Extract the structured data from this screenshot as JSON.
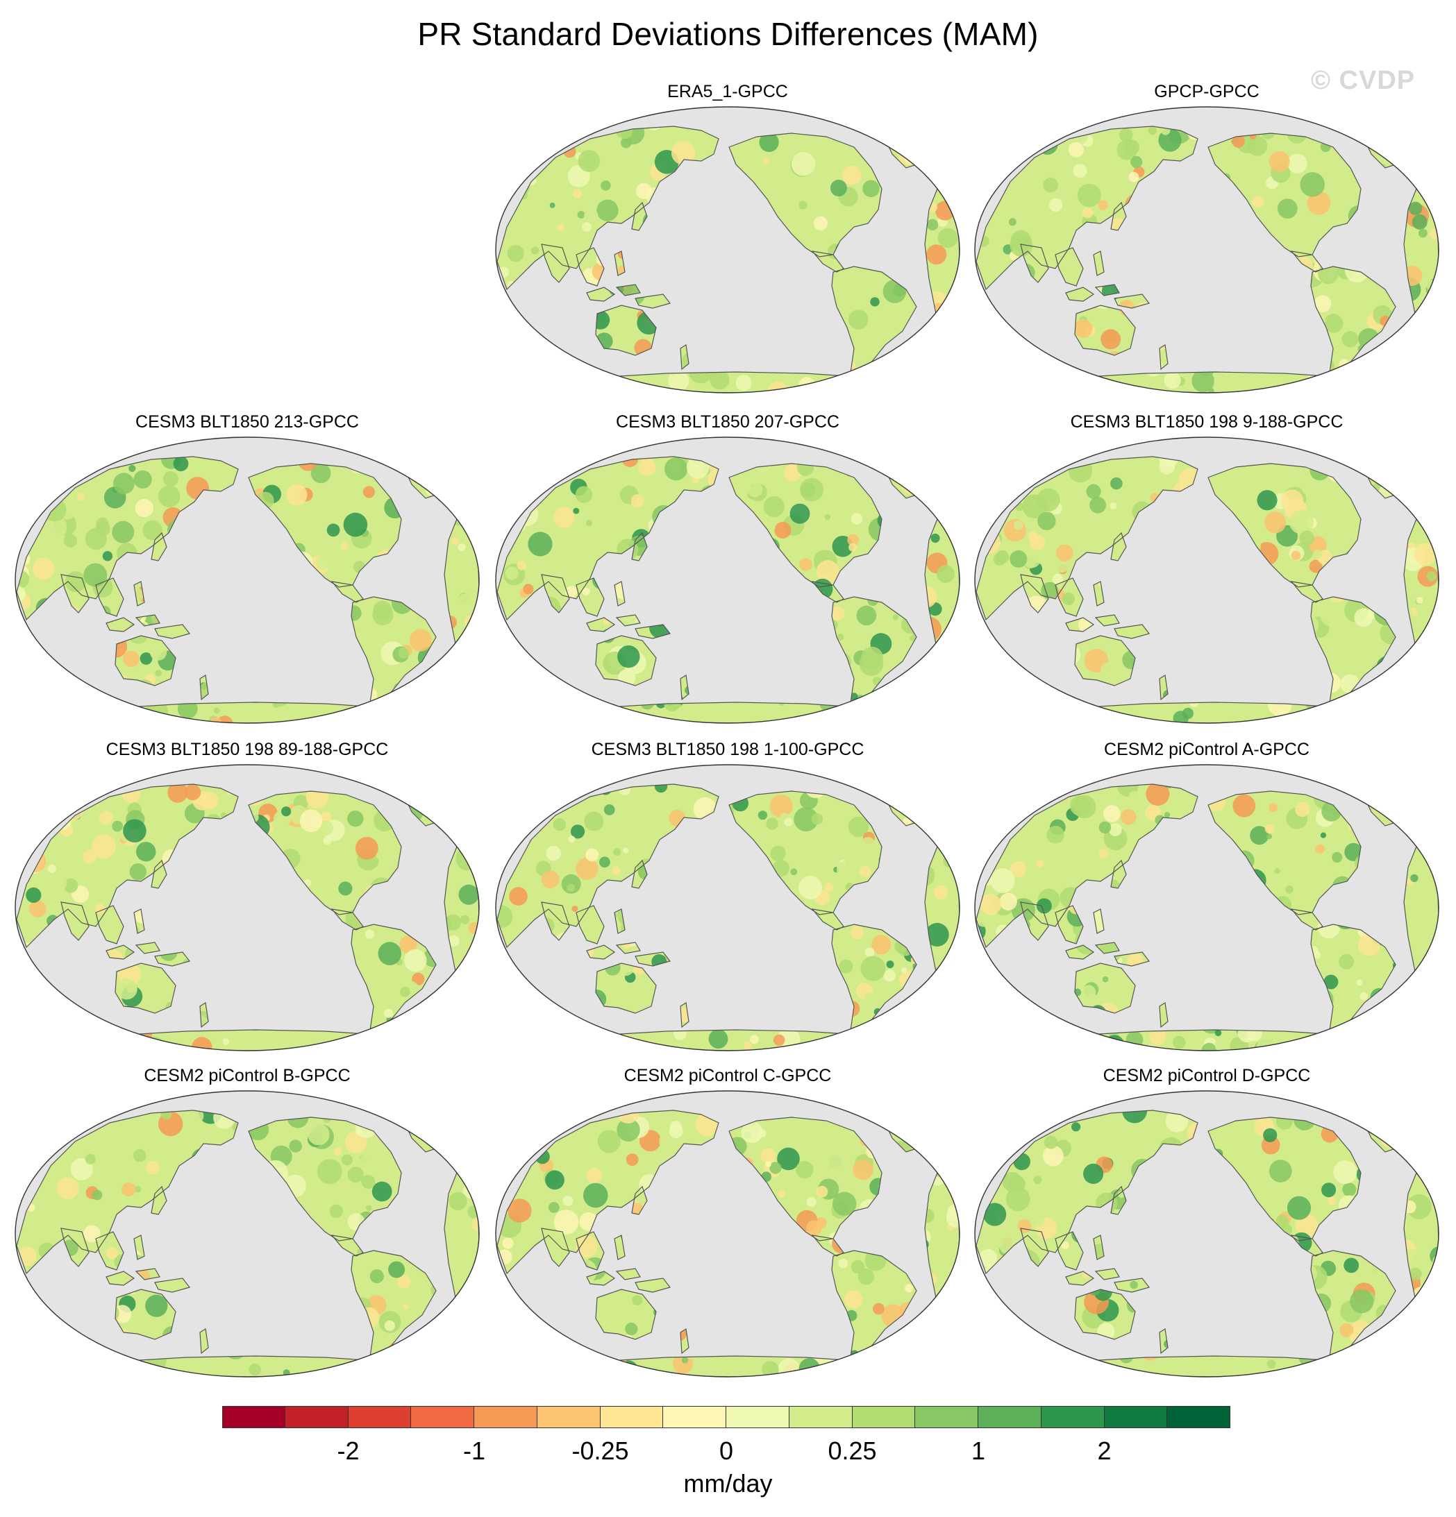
{
  "title": "PR Standard Deviations Differences (MAM)",
  "watermark": "© CVDP",
  "panels": [
    {
      "id": "era5",
      "title": "ERA5_1-GPCC",
      "seed": 3
    },
    {
      "id": "gpcp",
      "title": "GPCP-GPCC",
      "seed": 7
    },
    {
      "id": "blt213",
      "title": "CESM3 BLT1850 213-GPCC",
      "seed": 11
    },
    {
      "id": "blt207",
      "title": "CESM3 BLT1850 207-GPCC",
      "seed": 13
    },
    {
      "id": "blt198_9",
      "title": "CESM3 BLT1850 198 9-188-GPCC",
      "seed": 17
    },
    {
      "id": "blt198_89",
      "title": "CESM3 BLT1850 198 89-188-GPCC",
      "seed": 19
    },
    {
      "id": "blt198_1",
      "title": "CESM3 BLT1850 198 1-100-GPCC",
      "seed": 23
    },
    {
      "id": "picA",
      "title": "CESM2 piControl A-GPCC",
      "seed": 29
    },
    {
      "id": "picB",
      "title": "CESM2 piControl B-GPCC",
      "seed": 31
    },
    {
      "id": "picC",
      "title": "CESM2 piControl C-GPCC",
      "seed": 37
    },
    {
      "id": "picD",
      "title": "CESM2 piControl D-GPCC",
      "seed": 41
    }
  ],
  "colorbar": {
    "colors": [
      "#a50026",
      "#c42027",
      "#dd4030",
      "#ef6a40",
      "#f79a55",
      "#fcc370",
      "#fde593",
      "#fdf6b4",
      "#eef8b2",
      "#d2ec8c",
      "#b0dc72",
      "#88c864",
      "#5cb05a",
      "#2f964e",
      "#117a40",
      "#006237"
    ],
    "tick_labels": [
      "-2",
      "-1",
      "-0.25",
      "0",
      "0.25",
      "1",
      "2"
    ],
    "units": "mm/day"
  },
  "colors": {
    "ocean": "#e4e4e4",
    "coastline": "#555555"
  }
}
